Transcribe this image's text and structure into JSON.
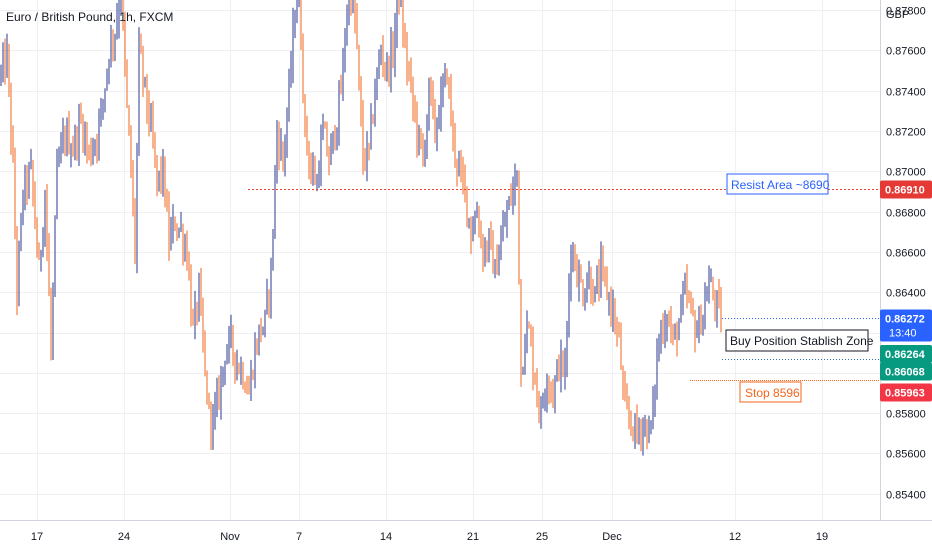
{
  "title": "Euro / British Pound, 1h, FXCM",
  "currency": "GBP",
  "colors": {
    "up": "#2b3a8f",
    "down": "#f2651c",
    "grid": "#eef0f4",
    "resist": "#e8412c",
    "resist_badge": "#e53935",
    "current_badge": "#2962ff",
    "buy_badge": "#089981",
    "stop_badge": "#f23645",
    "axis_line": "#d1d4dc"
  },
  "chart_data": {
    "type": "candlestick",
    "title": "Euro / British Pound, 1h, FXCM",
    "ylabel": "GBP",
    "y_ticks": [
      "0.87800",
      "0.87600",
      "0.87400",
      "0.87200",
      "0.87000",
      "0.86800",
      "0.86600",
      "0.86400",
      "0.86200",
      "0.86000",
      "0.85800",
      "0.85600",
      "0.85400"
    ],
    "x_ticks": [
      "17",
      "24",
      "Nov",
      "7",
      "14",
      "21",
      "25",
      "Dec",
      "12",
      "19"
    ],
    "ylim": [
      0.8527,
      0.8785
    ],
    "grid": true,
    "price_path": [
      [
        0,
        0.8748
      ],
      [
        6,
        0.8757
      ],
      [
        12,
        0.87
      ],
      [
        16,
        0.864
      ],
      [
        22,
        0.869
      ],
      [
        30,
        0.87
      ],
      [
        38,
        0.865
      ],
      [
        44,
        0.869
      ],
      [
        50,
        0.861
      ],
      [
        56,
        0.87
      ],
      [
        64,
        0.8718
      ],
      [
        72,
        0.8712
      ],
      [
        80,
        0.8725
      ],
      [
        88,
        0.8708
      ],
      [
        96,
        0.8718
      ],
      [
        102,
        0.8735
      ],
      [
        108,
        0.876
      ],
      [
        114,
        0.877
      ],
      [
        120,
        0.879
      ],
      [
        126,
        0.873
      ],
      [
        130,
        0.87
      ],
      [
        134,
        0.866
      ],
      [
        138,
        0.876
      ],
      [
        144,
        0.874
      ],
      [
        150,
        0.872
      ],
      [
        156,
        0.8695
      ],
      [
        162,
        0.87
      ],
      [
        168,
        0.8665
      ],
      [
        174,
        0.8675
      ],
      [
        180,
        0.867
      ],
      [
        186,
        0.866
      ],
      [
        192,
        0.862
      ],
      [
        198,
        0.864
      ],
      [
        204,
        0.8598
      ],
      [
        208,
        0.858
      ],
      [
        212,
        0.8575
      ],
      [
        218,
        0.859
      ],
      [
        224,
        0.861
      ],
      [
        230,
        0.8615
      ],
      [
        236,
        0.8605
      ],
      [
        242,
        0.86
      ],
      [
        248,
        0.859
      ],
      [
        252,
        0.8605
      ],
      [
        258,
        0.862
      ],
      [
        264,
        0.8625
      ],
      [
        270,
        0.865
      ],
      [
        276,
        0.872
      ],
      [
        282,
        0.8705
      ],
      [
        288,
        0.874
      ],
      [
        294,
        0.878
      ],
      [
        298,
        0.879
      ],
      [
        304,
        0.872
      ],
      [
        310,
        0.87
      ],
      [
        316,
        0.8695
      ],
      [
        322,
        0.872
      ],
      [
        328,
        0.8705
      ],
      [
        334,
        0.872
      ],
      [
        340,
        0.874
      ],
      [
        346,
        0.878
      ],
      [
        352,
        0.879
      ],
      [
        356,
        0.876
      ],
      [
        362,
        0.8705
      ],
      [
        368,
        0.871
      ],
      [
        374,
        0.874
      ],
      [
        380,
        0.876
      ],
      [
        386,
        0.875
      ],
      [
        392,
        0.876
      ],
      [
        398,
        0.879
      ],
      [
        404,
        0.876
      ],
      [
        410,
        0.874
      ],
      [
        416,
        0.872
      ],
      [
        422,
        0.8705
      ],
      [
        428,
        0.874
      ],
      [
        434,
        0.872
      ],
      [
        440,
        0.8735
      ],
      [
        446,
        0.875
      ],
      [
        452,
        0.8715
      ],
      [
        458,
        0.87
      ],
      [
        464,
        0.869
      ],
      [
        470,
        0.867
      ],
      [
        476,
        0.868
      ],
      [
        482,
        0.866
      ],
      [
        488,
        0.8665
      ],
      [
        494,
        0.865
      ],
      [
        500,
        0.8665
      ],
      [
        506,
        0.868
      ],
      [
        512,
        0.869
      ],
      [
        516,
        0.87
      ],
      [
        520,
        0.86
      ],
      [
        524,
        0.862
      ],
      [
        528,
        0.862
      ],
      [
        532,
        0.8605
      ],
      [
        536,
        0.859
      ],
      [
        540,
        0.858
      ],
      [
        546,
        0.86
      ],
      [
        552,
        0.859
      ],
      [
        558,
        0.8605
      ],
      [
        564,
        0.86
      ],
      [
        570,
        0.8665
      ],
      [
        576,
        0.865
      ],
      [
        582,
        0.864
      ],
      [
        588,
        0.8648
      ],
      [
        594,
        0.8638
      ],
      [
        600,
        0.865
      ],
      [
        606,
        0.864
      ],
      [
        612,
        0.863
      ],
      [
        618,
        0.8615
      ],
      [
        624,
        0.858
      ],
      [
        630,
        0.8575
      ],
      [
        636,
        0.857
      ],
      [
        642,
        0.8575
      ],
      [
        648,
        0.857
      ],
      [
        652,
        0.858
      ],
      [
        656,
        0.861
      ],
      [
        660,
        0.862
      ],
      [
        666,
        0.863
      ],
      [
        672,
        0.8615
      ],
      [
        678,
        0.8625
      ],
      [
        684,
        0.864
      ],
      [
        690,
        0.863
      ],
      [
        696,
        0.862
      ],
      [
        702,
        0.863
      ],
      [
        708,
        0.8645
      ],
      [
        714,
        0.8635
      ],
      [
        720,
        0.8627
      ]
    ],
    "x_domain": [
      0,
      880
    ],
    "levels": {
      "resist": 0.8691,
      "current": 0.86272,
      "buy": 0.86264,
      "buy_low": 0.86068,
      "stop": 0.85963
    }
  },
  "badges": {
    "resist": "0.86910",
    "current": "0.86272",
    "countdown": "13:40",
    "buy": "0.86264",
    "buy_low": "0.86068",
    "stop": "0.85963"
  },
  "annotations": {
    "resist": "Resist Area ~8690",
    "buy": "Buy Position Stablish Zone",
    "stop": "Stop 8596"
  }
}
